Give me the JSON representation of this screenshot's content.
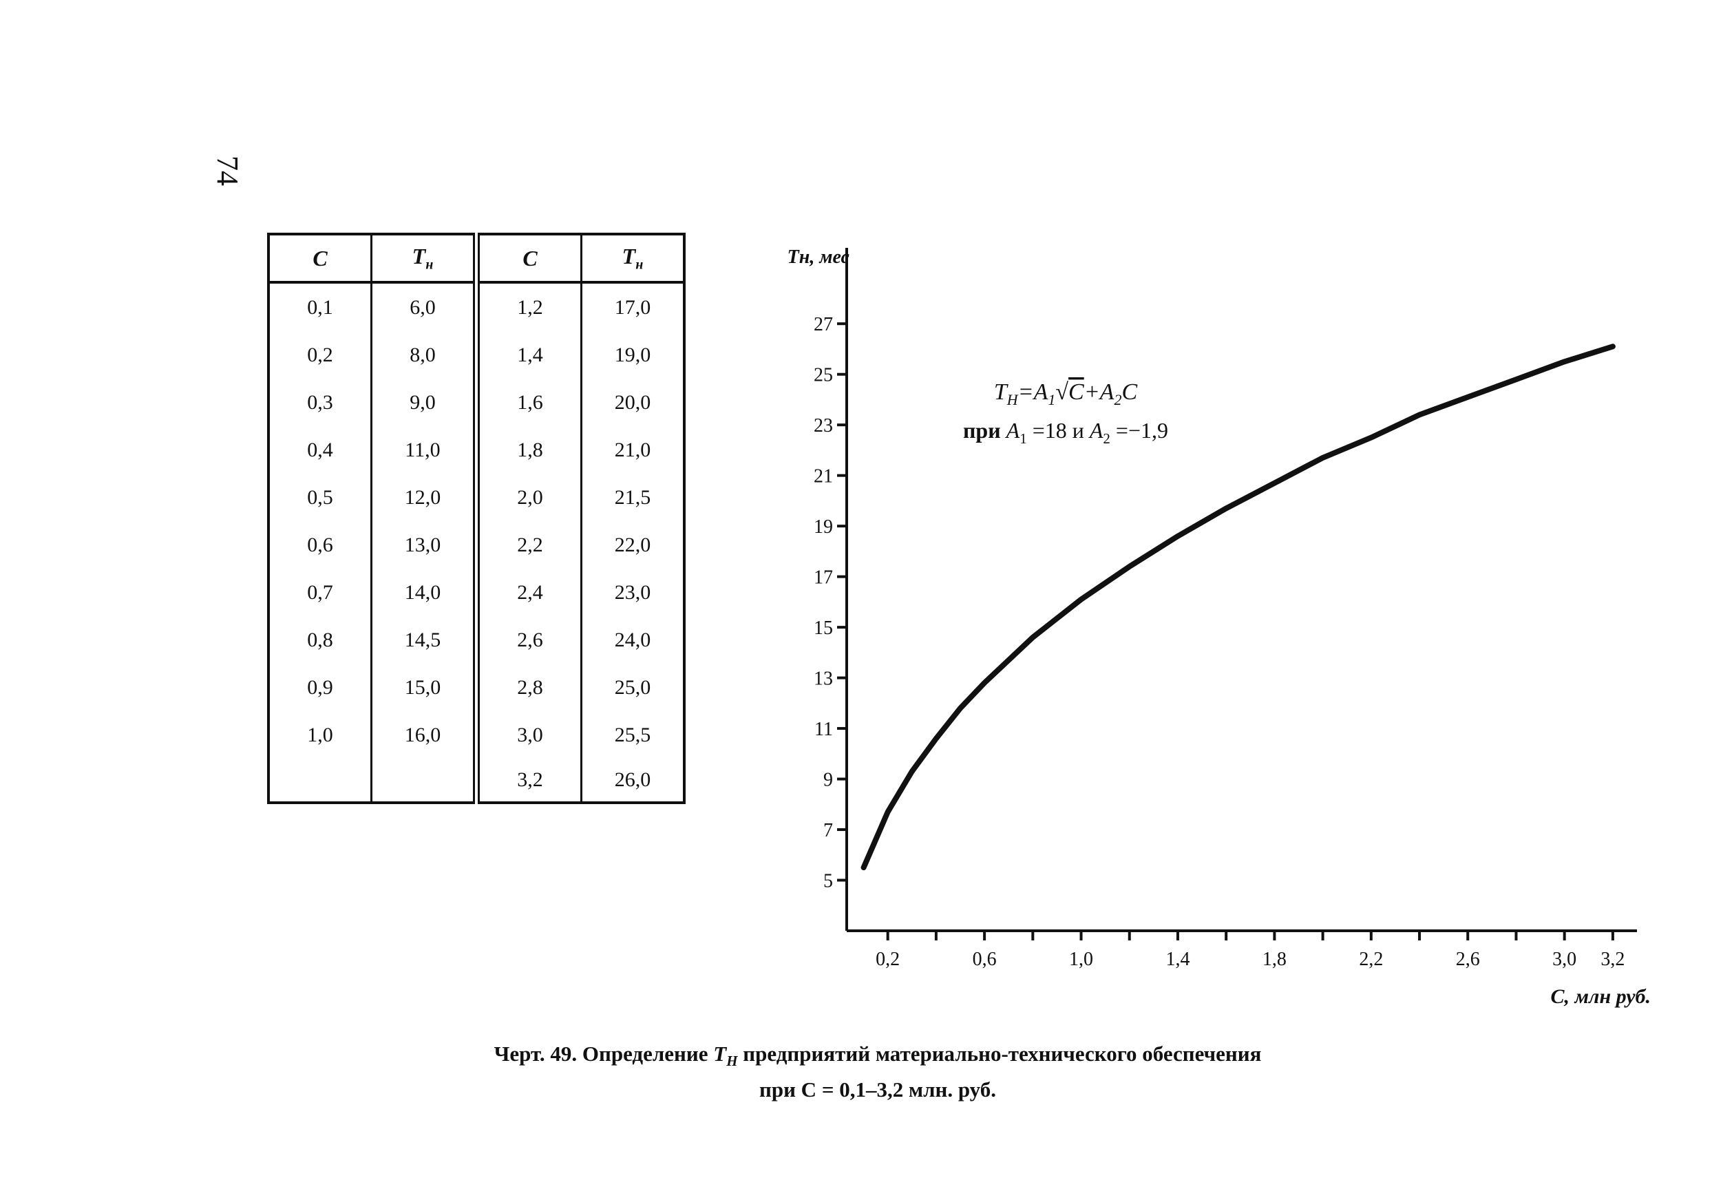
{
  "page": {
    "number": "74"
  },
  "table": {
    "headers": [
      "C",
      "T",
      "C",
      "T"
    ],
    "header_sub": "н",
    "left": [
      [
        "0,1",
        "6,0"
      ],
      [
        "0,2",
        "8,0"
      ],
      [
        "0,3",
        "9,0"
      ],
      [
        "0,4",
        "11,0"
      ],
      [
        "0,5",
        "12,0"
      ],
      [
        "0,6",
        "13,0"
      ],
      [
        "0,7",
        "14,0"
      ],
      [
        "0,8",
        "14,5"
      ],
      [
        "0,9",
        "15,0"
      ],
      [
        "1,0",
        "16,0"
      ],
      [
        "",
        ""
      ]
    ],
    "right": [
      [
        "1,2",
        "17,0"
      ],
      [
        "1,4",
        "19,0"
      ],
      [
        "1,6",
        "20,0"
      ],
      [
        "1,8",
        "21,0"
      ],
      [
        "2,0",
        "21,5"
      ],
      [
        "2,2",
        "22,0"
      ],
      [
        "2,4",
        "23,0"
      ],
      [
        "2,6",
        "24,0"
      ],
      [
        "2,8",
        "25,0"
      ],
      [
        "3,0",
        "25,5"
      ],
      [
        "3,2",
        "26,0"
      ]
    ]
  },
  "chart_data": {
    "type": "line",
    "ylabel": "Tн, мес",
    "xlabel": "С, млн руб.",
    "xlim": [
      0.03,
      3.3
    ],
    "ylim": [
      3,
      30
    ],
    "x_ticks": [
      0.2,
      0.6,
      1.0,
      1.4,
      1.8,
      2.2,
      2.6,
      3.0,
      3.2
    ],
    "x_tick_labels": [
      "0,2",
      "0,6",
      "1,0",
      "1,4",
      "1,8",
      "2,2",
      "2,6",
      "3,0",
      "3,2"
    ],
    "x_minor_ticks": [
      0.4,
      0.8,
      1.2,
      1.6,
      2.0,
      2.4,
      2.8
    ],
    "y_ticks": [
      5,
      7,
      9,
      11,
      13,
      15,
      17,
      19,
      21,
      23,
      25,
      27
    ],
    "y_tick_labels": [
      "5",
      "7",
      "9",
      "11",
      "13",
      "15",
      "17",
      "19",
      "21",
      "23",
      "25",
      "27"
    ],
    "series": [
      {
        "x": [
          0.1,
          0.2,
          0.3,
          0.4,
          0.5,
          0.6,
          0.8,
          1.0,
          1.2,
          1.4,
          1.6,
          1.8,
          2.0,
          2.2,
          2.4,
          2.6,
          2.8,
          3.0,
          3.2
        ],
        "y": [
          5.5,
          7.7,
          9.3,
          10.6,
          11.8,
          12.8,
          14.6,
          16.1,
          17.4,
          18.6,
          19.7,
          20.7,
          21.7,
          22.5,
          23.4,
          24.1,
          24.8,
          25.5,
          26.1
        ]
      }
    ],
    "annotation": {
      "formula_prefix": "T",
      "formula_sub": "Н",
      "formula_mid": "=A",
      "formula_a1_sub": "1",
      "formula_sqrt": "√",
      "formula_c": "C",
      "formula_plus": "+A",
      "formula_a2_sub": "2",
      "formula_end": "C",
      "params_pri": "при ",
      "params_a": "A",
      "params_1": "1",
      "params_eq18": " =18 и ",
      "params_a2": "A",
      "params_2": "2",
      "params_eqneg": " =−1,9"
    }
  },
  "caption": {
    "line1_pre": "Черт. 49. Определение ",
    "line1_T": "T",
    "line1_sub": "Н",
    "line1_post": " предприятий материально-технического обеспечения",
    "line2": "при С = 0,1–3,2 млн. руб."
  }
}
